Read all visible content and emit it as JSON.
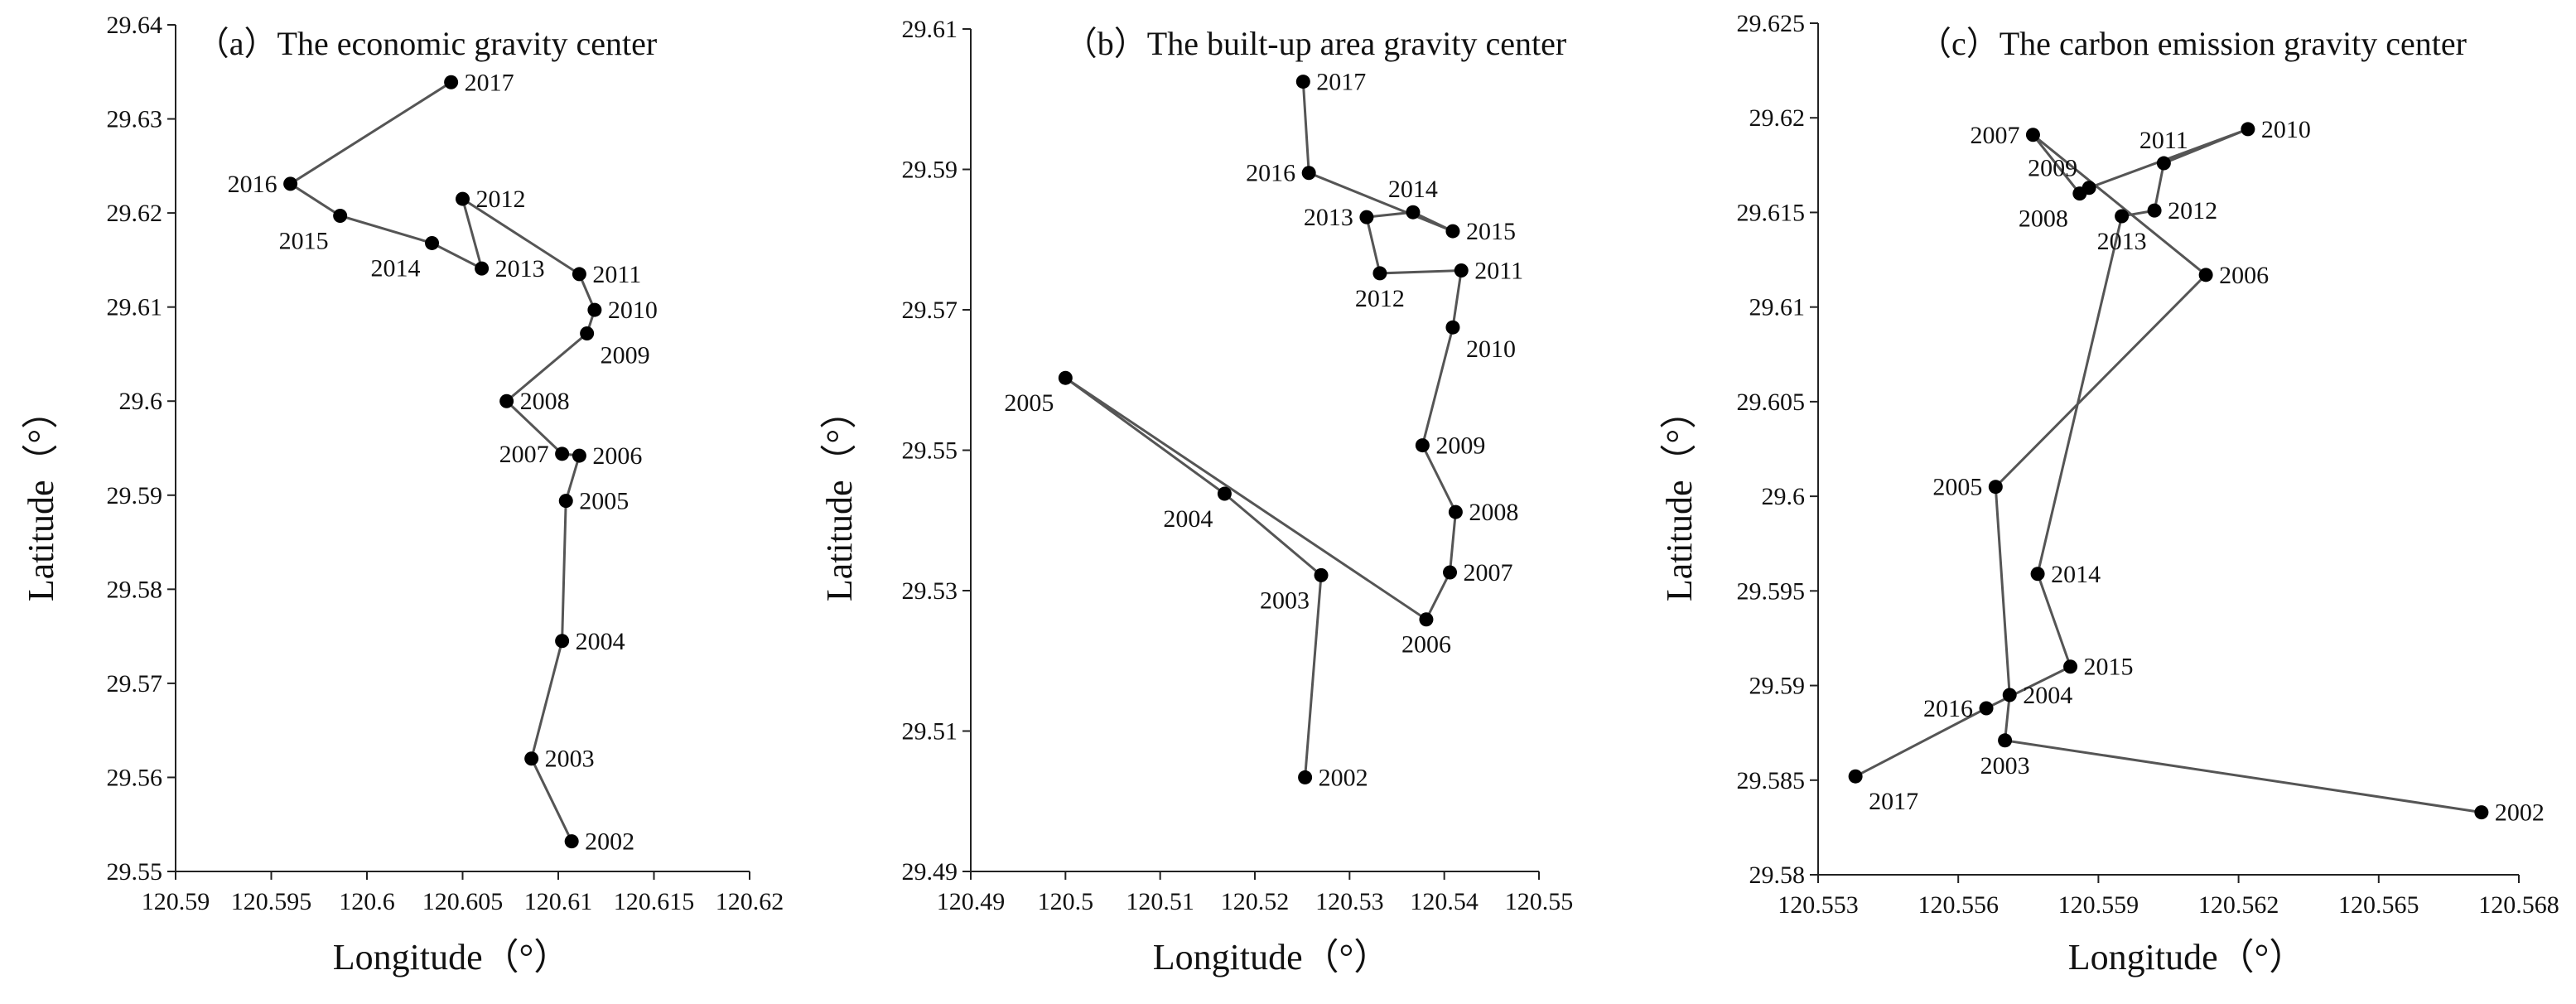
{
  "colors": {
    "line": "#555555",
    "marker": "#000000",
    "axis": "#222222",
    "text": "#111111"
  },
  "chart_data": [
    {
      "type": "scatter",
      "title": "（a）The economic gravity center",
      "xlabel": "Longitude（°）",
      "ylabel": "Latitude（°）",
      "xlim": [
        120.59,
        120.62
      ],
      "ylim": [
        29.55,
        29.64
      ],
      "xticks": [
        "120.59",
        "120.595",
        "120.6",
        "120.605",
        "120.61",
        "120.615",
        "120.62"
      ],
      "yticks": [
        "29.55",
        "29.56",
        "29.57",
        "29.58",
        "29.59",
        "29.6",
        "29.61",
        "29.62",
        "29.63",
        "29.64"
      ],
      "grid": false,
      "legend": "none",
      "points": [
        {
          "label": "2002",
          "x": 120.6107,
          "y": 29.5532,
          "pos": "right"
        },
        {
          "label": "2003",
          "x": 120.6086,
          "y": 29.562,
          "pos": "right"
        },
        {
          "label": "2004",
          "x": 120.6102,
          "y": 29.5745,
          "pos": "right"
        },
        {
          "label": "2005",
          "x": 120.6104,
          "y": 29.5894,
          "pos": "right"
        },
        {
          "label": "2006",
          "x": 120.6111,
          "y": 29.5942,
          "pos": "right"
        },
        {
          "label": "2007",
          "x": 120.6102,
          "y": 29.5944,
          "pos": "left"
        },
        {
          "label": "2008",
          "x": 120.6073,
          "y": 29.6,
          "pos": "right"
        },
        {
          "label": "2009",
          "x": 120.6115,
          "y": 29.6072,
          "pos": "right-below"
        },
        {
          "label": "2010",
          "x": 120.6119,
          "y": 29.6097,
          "pos": "right"
        },
        {
          "label": "2011",
          "x": 120.6111,
          "y": 29.6135,
          "pos": "right"
        },
        {
          "label": "2012",
          "x": 120.605,
          "y": 29.6215,
          "pos": "right"
        },
        {
          "label": "2013",
          "x": 120.606,
          "y": 29.6141,
          "pos": "right"
        },
        {
          "label": "2014",
          "x": 120.6034,
          "y": 29.6168,
          "pos": "below-left"
        },
        {
          "label": "2015",
          "x": 120.5986,
          "y": 29.6197,
          "pos": "below-left"
        },
        {
          "label": "2016",
          "x": 120.596,
          "y": 29.6231,
          "pos": "left"
        },
        {
          "label": "2017",
          "x": 120.6044,
          "y": 29.6339,
          "pos": "right"
        }
      ]
    },
    {
      "type": "scatter",
      "title": "（b）The built-up area gravity center",
      "xlabel": "Longitude（°）",
      "ylabel": "Latitude（°）",
      "xlim": [
        120.49,
        120.55
      ],
      "ylim": [
        29.49,
        29.61
      ],
      "xticks": [
        "120.49",
        "120.5",
        "120.51",
        "120.52",
        "120.53",
        "120.54",
        "120.55"
      ],
      "yticks": [
        "29.49",
        "29.51",
        "29.53",
        "29.55",
        "29.57",
        "29.59",
        "29.61"
      ],
      "grid": false,
      "legend": "none",
      "points": [
        {
          "label": "2002",
          "x": 120.5253,
          "y": 29.5034,
          "pos": "right"
        },
        {
          "label": "2003",
          "x": 120.527,
          "y": 29.5322,
          "pos": "below-left"
        },
        {
          "label": "2004",
          "x": 120.5168,
          "y": 29.5438,
          "pos": "below-left"
        },
        {
          "label": "2005",
          "x": 120.5,
          "y": 29.5603,
          "pos": "below-left"
        },
        {
          "label": "2006",
          "x": 120.5381,
          "y": 29.5259,
          "pos": "below"
        },
        {
          "label": "2007",
          "x": 120.5406,
          "y": 29.5326,
          "pos": "right"
        },
        {
          "label": "2008",
          "x": 120.5412,
          "y": 29.5412,
          "pos": "right"
        },
        {
          "label": "2009",
          "x": 120.5377,
          "y": 29.5507,
          "pos": "right"
        },
        {
          "label": "2010",
          "x": 120.5409,
          "y": 29.5675,
          "pos": "right-below"
        },
        {
          "label": "2011",
          "x": 120.5418,
          "y": 29.5756,
          "pos": "right"
        },
        {
          "label": "2012",
          "x": 120.5332,
          "y": 29.5752,
          "pos": "below"
        },
        {
          "label": "2013",
          "x": 120.5318,
          "y": 29.5832,
          "pos": "left"
        },
        {
          "label": "2014",
          "x": 120.5367,
          "y": 29.5839,
          "pos": "above"
        },
        {
          "label": "2015",
          "x": 120.5409,
          "y": 29.5812,
          "pos": "right"
        },
        {
          "label": "2016",
          "x": 120.5257,
          "y": 29.5895,
          "pos": "left"
        },
        {
          "label": "2017",
          "x": 120.5251,
          "y": 29.6025,
          "pos": "right"
        }
      ]
    },
    {
      "type": "scatter",
      "title": "（c）The carbon emission gravity center",
      "xlabel": "Longitude（°）",
      "ylabel": "Latitude（°）",
      "xlim": [
        120.553,
        120.568
      ],
      "ylim": [
        29.58,
        29.625
      ],
      "xticks": [
        "120.553",
        "120.556",
        "120.559",
        "120.562",
        "120.565",
        "120.568"
      ],
      "yticks": [
        "29.58",
        "29.585",
        "29.59",
        "29.595",
        "29.6",
        "29.605",
        "29.61",
        "29.615",
        "29.62",
        "29.625"
      ],
      "grid": false,
      "legend": "none",
      "points": [
        {
          "label": "2002",
          "x": 120.5672,
          "y": 29.5833,
          "pos": "right"
        },
        {
          "label": "2003",
          "x": 120.557,
          "y": 29.5871,
          "pos": "below"
        },
        {
          "label": "2004",
          "x": 120.5571,
          "y": 29.5895,
          "pos": "right"
        },
        {
          "label": "2005",
          "x": 120.5568,
          "y": 29.6005,
          "pos": "left"
        },
        {
          "label": "2006",
          "x": 120.5613,
          "y": 29.6117,
          "pos": "right"
        },
        {
          "label": "2007",
          "x": 120.5576,
          "y": 29.6191,
          "pos": "left"
        },
        {
          "label": "2008",
          "x": 120.5586,
          "y": 29.616,
          "pos": "below-left"
        },
        {
          "label": "2009",
          "x": 120.5588,
          "y": 29.6163,
          "pos": "above-left"
        },
        {
          "label": "2010",
          "x": 120.5622,
          "y": 29.6194,
          "pos": "right"
        },
        {
          "label": "2011",
          "x": 120.5604,
          "y": 29.6176,
          "pos": "above"
        },
        {
          "label": "2012",
          "x": 120.5602,
          "y": 29.6151,
          "pos": "right"
        },
        {
          "label": "2013",
          "x": 120.5595,
          "y": 29.6148,
          "pos": "below"
        },
        {
          "label": "2014",
          "x": 120.5577,
          "y": 29.5959,
          "pos": "right"
        },
        {
          "label": "2015",
          "x": 120.5584,
          "y": 29.591,
          "pos": "right"
        },
        {
          "label": "2016",
          "x": 120.5566,
          "y": 29.5888,
          "pos": "left"
        },
        {
          "label": "2017",
          "x": 120.5538,
          "y": 29.5852,
          "pos": "below-right"
        }
      ]
    }
  ]
}
